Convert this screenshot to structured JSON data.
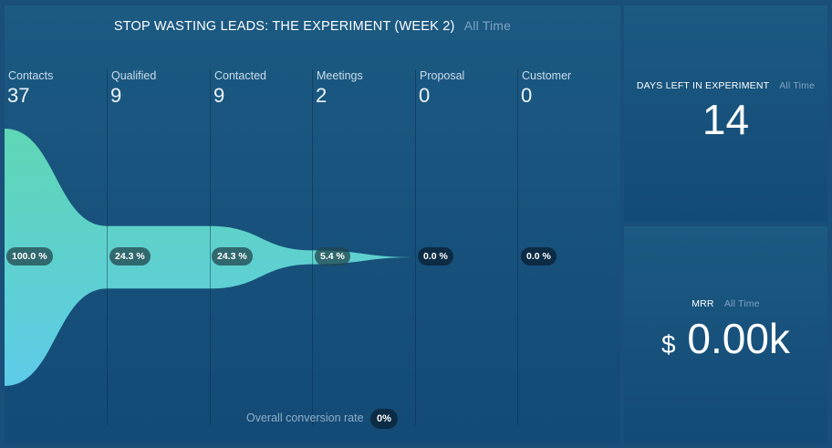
{
  "funnel": {
    "title": "STOP WASTING LEADS: THE EXPERIMENT (WEEK 2)",
    "period": "All Time",
    "stages": [
      {
        "label": "Contacts",
        "count": "37",
        "pct": "100.0 %",
        "pct_value": 100.0
      },
      {
        "label": "Qualified",
        "count": "9",
        "pct": "24.3 %",
        "pct_value": 24.3
      },
      {
        "label": "Contacted",
        "count": "9",
        "pct": "24.3 %",
        "pct_value": 24.3
      },
      {
        "label": "Meetings",
        "count": "2",
        "pct": "5.4 %",
        "pct_value": 5.4
      },
      {
        "label": "Proposal",
        "count": "0",
        "pct": "0.0 %",
        "pct_value": 0.0
      },
      {
        "label": "Customer",
        "count": "0",
        "pct": "0.0 %",
        "pct_value": 0.0
      }
    ],
    "conversion_label": "Overall conversion rate",
    "conversion_value": "0%",
    "gradient_top": "#5fd6b4",
    "gradient_bottom": "#5ecbe8"
  },
  "days_left": {
    "title": "DAYS LEFT IN EXPERIMENT",
    "period": "All Time",
    "value": "14"
  },
  "mrr": {
    "title": "MRR",
    "period": "All Time",
    "currency": "$",
    "value": "0.00k"
  }
}
